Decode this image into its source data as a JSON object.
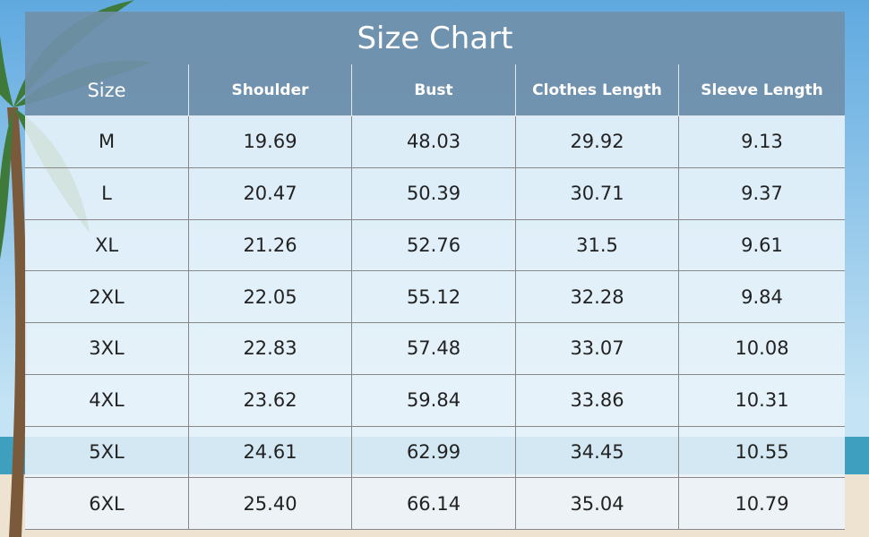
{
  "title": "Size Chart",
  "table": {
    "header": [
      "Size",
      "Shoulder",
      "Bust",
      "Clothes Length",
      "Sleeve Length"
    ],
    "rows": [
      [
        "M",
        "19.69",
        "48.03",
        "29.92",
        "9.13"
      ],
      [
        "L",
        "20.47",
        "50.39",
        "30.71",
        "9.37"
      ],
      [
        "XL",
        "21.26",
        "52.76",
        "31.5",
        "9.61"
      ],
      [
        "2XL",
        "22.05",
        "55.12",
        "32.28",
        "9.84"
      ],
      [
        "3XL",
        "22.83",
        "57.48",
        "33.07",
        "10.08"
      ],
      [
        "4XL",
        "23.62",
        "59.84",
        "33.86",
        "10.31"
      ],
      [
        "5XL",
        "24.61",
        "62.99",
        "34.45",
        "10.55"
      ],
      [
        "6XL",
        "25.40",
        "66.14",
        "35.04",
        "10.79"
      ]
    ]
  }
}
